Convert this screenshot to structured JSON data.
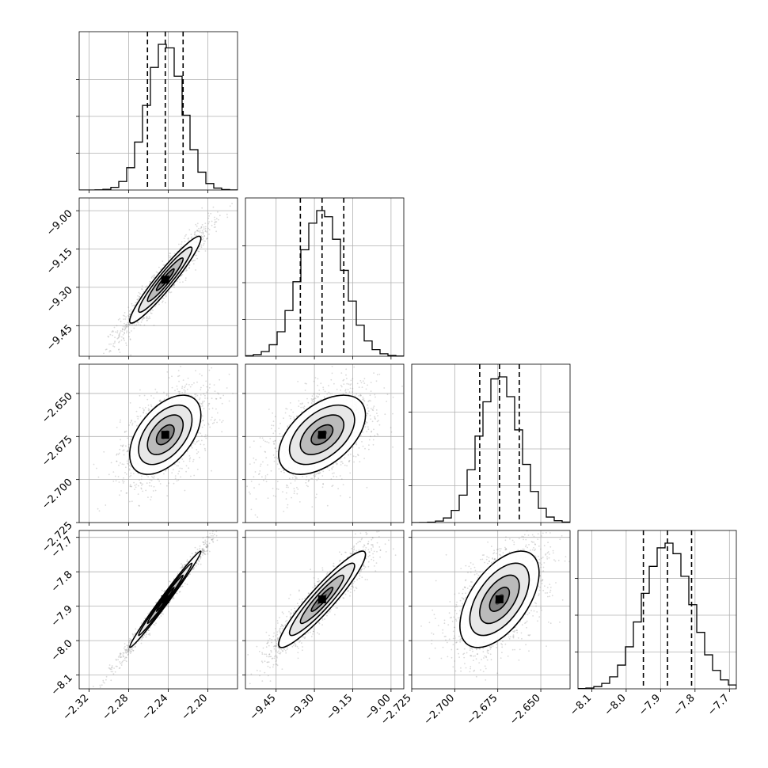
{
  "chart_data": {
    "type": "corner",
    "num_params": 4,
    "grid": true,
    "params": [
      {
        "mean": -2.243,
        "sd": 0.018,
        "range": [
          -2.33,
          -2.17
        ],
        "ticks": [
          -2.32,
          -2.28,
          -2.24,
          -2.2
        ],
        "tick_labels": [
          "−2.32",
          "−2.28",
          "−2.24",
          "−2.20"
        ],
        "quantiles": [
          -2.261,
          -2.243,
          -2.225
        ]
      },
      {
        "mean": -9.27,
        "sd": 0.085,
        "range": [
          -9.57,
          -8.95
        ],
        "ticks": [
          -9.45,
          -9.3,
          -9.15,
          -9.0
        ],
        "tick_labels": [
          "−9.45",
          "−9.30",
          "−9.15",
          "−9.00"
        ],
        "quantiles": [
          -9.355,
          -9.27,
          -9.185
        ]
      },
      {
        "mean": -2.674,
        "sd": 0.0115,
        "range": [
          -2.725,
          -2.633
        ],
        "ticks": [
          -2.725,
          -2.7,
          -2.675,
          -2.65
        ],
        "tick_labels": [
          "−2.725",
          "−2.700",
          "−2.675",
          "−2.650"
        ],
        "quantiles": [
          -2.6855,
          -2.674,
          -2.6625
        ]
      },
      {
        "mean": -7.88,
        "sd": 0.07,
        "range": [
          -8.14,
          -7.68
        ],
        "ticks": [
          -8.1,
          -8.0,
          -7.9,
          -7.8,
          -7.7
        ],
        "tick_labels": [
          "−8.1",
          "−8.0",
          "−7.9",
          "−7.8",
          "−7.7"
        ],
        "quantiles": [
          -7.95,
          -7.88,
          -7.81
        ]
      }
    ],
    "correlations": [
      [
        1.0,
        0.95,
        0.5,
        0.99
      ],
      [
        0.95,
        1.0,
        0.5,
        0.93
      ],
      [
        0.5,
        0.5,
        1.0,
        0.55
      ],
      [
        0.99,
        0.93,
        0.55,
        1.0
      ]
    ],
    "histogram_bins": 20,
    "contour_levels_sigma": [
      0.5,
      1.0,
      1.5,
      2.0
    ],
    "colors": {
      "points": "#7a7a7a",
      "contour": "#000000",
      "density": "#000000",
      "grid": "#b0b0b0"
    }
  }
}
